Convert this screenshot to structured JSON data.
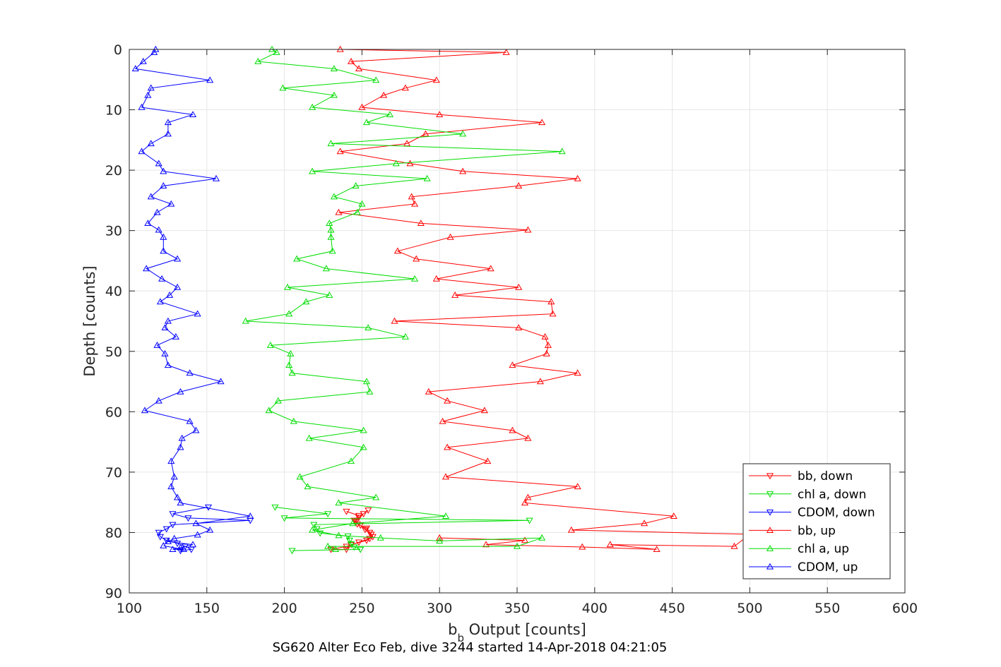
{
  "chart_data": {
    "type": "line",
    "title": "",
    "caption": "SG620 Alter Eco Feb, dive 3244 started 14-Apr-2018 04:21:05",
    "xlabel_main": "b",
    "xlabel_sub": "b",
    "xlabel_rest": " Output [counts]",
    "ylabel": "Depth [counts]",
    "xlim": [
      100,
      600
    ],
    "ylim": [
      0,
      90
    ],
    "y_reversed": true,
    "grid": true,
    "legend_position": "bottom-right",
    "xticks": [
      "100",
      "150",
      "200",
      "250",
      "300",
      "350",
      "400",
      "450",
      "500",
      "550",
      "600"
    ],
    "yticks": [
      "0",
      "10",
      "20",
      "30",
      "40",
      "50",
      "60",
      "70",
      "80",
      "90"
    ],
    "series": [
      {
        "name": "bb, down",
        "color": "#ff0000",
        "marker": "triangle-down",
        "points": [
          [
            240,
            76.5
          ],
          [
            248,
            77.2
          ],
          [
            245,
            78.0
          ],
          [
            247,
            78.6
          ],
          [
            253,
            79.3
          ],
          [
            255,
            80.0
          ],
          [
            257,
            80.7
          ],
          [
            253,
            81.3
          ],
          [
            243,
            82.0
          ],
          [
            240,
            82.8
          ],
          [
            230,
            82.8
          ],
          [
            240,
            82.3
          ],
          [
            248,
            81.6
          ],
          [
            255,
            81.0
          ],
          [
            256,
            80.3
          ],
          [
            252,
            79.5
          ],
          [
            249,
            78.8
          ],
          [
            246,
            78.2
          ],
          [
            248,
            77.5
          ],
          [
            251,
            76.9
          ],
          [
            254,
            76.3
          ]
        ]
      },
      {
        "name": "chl a, down",
        "color": "#00dd00",
        "marker": "triangle-down",
        "points": [
          [
            194,
            75.8
          ],
          [
            228,
            76.9
          ],
          [
            200,
            77.6
          ],
          [
            358,
            78.0
          ],
          [
            219,
            78.7
          ],
          [
            221,
            79.4
          ],
          [
            223,
            80.1
          ],
          [
            241,
            80.6
          ],
          [
            242,
            81.3
          ],
          [
            243,
            81.9
          ],
          [
            245,
            82.4
          ],
          [
            249,
            82.8
          ],
          [
            205,
            83.0
          ]
        ]
      },
      {
        "name": "CDOM, down",
        "color": "#0000ff",
        "marker": "triangle-down",
        "points": [
          [
            151,
            75.8
          ],
          [
            128,
            76.9
          ],
          [
            138,
            77.6
          ],
          [
            178,
            78.0
          ],
          [
            128,
            78.7
          ],
          [
            124,
            79.4
          ],
          [
            119,
            80.0
          ],
          [
            120,
            80.7
          ],
          [
            124,
            81.3
          ],
          [
            131,
            81.8
          ],
          [
            136,
            82.3
          ],
          [
            140,
            82.8
          ],
          [
            133,
            83.0
          ]
        ]
      },
      {
        "name": "bb, up",
        "color": "#ff0000",
        "marker": "triangle-up",
        "points": [
          [
            236,
            0
          ],
          [
            343,
            0.5
          ],
          [
            243,
            2.0
          ],
          [
            248,
            3.2
          ],
          [
            298,
            5.1
          ],
          [
            278,
            6.4
          ],
          [
            264,
            7.6
          ],
          [
            250,
            9.6
          ],
          [
            300,
            10.8
          ],
          [
            366,
            12.1
          ],
          [
            291,
            14.0
          ],
          [
            279,
            15.6
          ],
          [
            236,
            16.9
          ],
          [
            281,
            18.9
          ],
          [
            315,
            20.2
          ],
          [
            389,
            21.4
          ],
          [
            351,
            22.6
          ],
          [
            282,
            24.4
          ],
          [
            284,
            25.6
          ],
          [
            235,
            27.0
          ],
          [
            288,
            28.8
          ],
          [
            357,
            29.9
          ],
          [
            307,
            31.1
          ],
          [
            273,
            33.4
          ],
          [
            285,
            34.7
          ],
          [
            333,
            36.3
          ],
          [
            298,
            38.0
          ],
          [
            351,
            39.4
          ],
          [
            310,
            40.7
          ],
          [
            372,
            41.8
          ],
          [
            373,
            43.8
          ],
          [
            271,
            45.0
          ],
          [
            351,
            46.1
          ],
          [
            368,
            47.6
          ],
          [
            370,
            49.0
          ],
          [
            369,
            50.4
          ],
          [
            347,
            52.3
          ],
          [
            389,
            53.6
          ],
          [
            365,
            55.0
          ],
          [
            293,
            56.7
          ],
          [
            305,
            58.2
          ],
          [
            329,
            59.8
          ],
          [
            302,
            61.6
          ],
          [
            347,
            63.1
          ],
          [
            357,
            64.4
          ],
          [
            305,
            65.9
          ],
          [
            331,
            68.2
          ],
          [
            304,
            70.8
          ],
          [
            389,
            72.4
          ],
          [
            357,
            74.2
          ],
          [
            355,
            75.1
          ],
          [
            451,
            77.3
          ],
          [
            432,
            78.5
          ],
          [
            385,
            79.6
          ],
          [
            500,
            80.3
          ],
          [
            490,
            82.3
          ],
          [
            410,
            82.0
          ],
          [
            440,
            82.8
          ],
          [
            392,
            82.4
          ],
          [
            330,
            82.0
          ],
          [
            355,
            81.3
          ],
          [
            300,
            80.9
          ]
        ]
      },
      {
        "name": "chl a, up",
        "color": "#00dd00",
        "marker": "triangle-up",
        "points": [
          [
            192,
            0
          ],
          [
            195,
            0.5
          ],
          [
            183,
            2.0
          ],
          [
            232,
            3.2
          ],
          [
            259,
            5.1
          ],
          [
            199,
            6.4
          ],
          [
            232,
            7.6
          ],
          [
            218,
            9.6
          ],
          [
            268,
            10.8
          ],
          [
            253,
            12.1
          ],
          [
            315,
            14.0
          ],
          [
            230,
            15.6
          ],
          [
            379,
            16.9
          ],
          [
            272,
            18.9
          ],
          [
            218,
            20.2
          ],
          [
            292,
            21.4
          ],
          [
            246,
            22.6
          ],
          [
            232,
            24.4
          ],
          [
            250,
            25.6
          ],
          [
            247,
            27.0
          ],
          [
            229,
            28.8
          ],
          [
            230,
            29.9
          ],
          [
            230,
            31.1
          ],
          [
            231,
            33.4
          ],
          [
            208,
            34.7
          ],
          [
            227,
            36.3
          ],
          [
            284,
            38.0
          ],
          [
            202,
            39.4
          ],
          [
            229,
            40.7
          ],
          [
            214,
            41.8
          ],
          [
            203,
            43.8
          ],
          [
            175,
            45.0
          ],
          [
            254,
            46.1
          ],
          [
            278,
            47.6
          ],
          [
            191,
            49.0
          ],
          [
            204,
            50.4
          ],
          [
            203,
            52.3
          ],
          [
            205,
            53.6
          ],
          [
            253,
            55.0
          ],
          [
            255,
            56.7
          ],
          [
            196,
            58.2
          ],
          [
            190,
            59.8
          ],
          [
            206,
            61.6
          ],
          [
            251,
            63.1
          ],
          [
            216,
            64.4
          ],
          [
            251,
            65.9
          ],
          [
            243,
            68.2
          ],
          [
            210,
            70.8
          ],
          [
            215,
            72.4
          ],
          [
            259,
            74.2
          ],
          [
            235,
            75.1
          ],
          [
            304,
            77.3
          ],
          [
            244,
            78.5
          ],
          [
            218,
            79.6
          ],
          [
            235,
            80.5
          ],
          [
            262,
            80.9
          ],
          [
            300,
            81.4
          ],
          [
            366,
            80.9
          ],
          [
            350,
            82.3
          ],
          [
            228,
            82.3
          ],
          [
            233,
            82.8
          ]
        ]
      },
      {
        "name": "CDOM, up",
        "color": "#0000ff",
        "marker": "triangle-up",
        "points": [
          [
            117,
            0
          ],
          [
            116,
            0.5
          ],
          [
            109,
            2.0
          ],
          [
            104,
            3.2
          ],
          [
            152,
            5.1
          ],
          [
            114,
            6.4
          ],
          [
            112,
            7.6
          ],
          [
            108,
            9.6
          ],
          [
            141,
            10.8
          ],
          [
            125,
            12.1
          ],
          [
            125,
            14.0
          ],
          [
            114,
            15.6
          ],
          [
            108,
            16.9
          ],
          [
            119,
            18.9
          ],
          [
            122,
            20.2
          ],
          [
            156,
            21.4
          ],
          [
            122,
            22.6
          ],
          [
            114,
            24.4
          ],
          [
            127,
            25.6
          ],
          [
            118,
            27.0
          ],
          [
            112,
            28.8
          ],
          [
            119,
            29.9
          ],
          [
            122,
            31.1
          ],
          [
            122,
            33.4
          ],
          [
            131,
            34.7
          ],
          [
            111,
            36.3
          ],
          [
            121,
            38.0
          ],
          [
            131,
            39.4
          ],
          [
            126,
            40.7
          ],
          [
            120,
            41.8
          ],
          [
            144,
            43.8
          ],
          [
            125,
            45.0
          ],
          [
            123,
            46.1
          ],
          [
            130,
            47.6
          ],
          [
            118,
            49.0
          ],
          [
            123,
            50.4
          ],
          [
            125,
            52.3
          ],
          [
            139,
            53.6
          ],
          [
            159,
            55.0
          ],
          [
            133,
            56.7
          ],
          [
            119,
            58.2
          ],
          [
            110,
            59.8
          ],
          [
            139,
            61.6
          ],
          [
            143,
            63.1
          ],
          [
            134,
            64.4
          ],
          [
            133,
            65.9
          ],
          [
            127,
            68.2
          ],
          [
            129,
            70.8
          ],
          [
            127,
            72.4
          ],
          [
            131,
            74.2
          ],
          [
            133,
            75.1
          ],
          [
            178,
            77.3
          ],
          [
            143,
            78.5
          ],
          [
            152,
            79.6
          ],
          [
            144,
            80.4
          ],
          [
            129,
            81.0
          ],
          [
            125,
            81.5
          ],
          [
            141,
            82.0
          ],
          [
            133,
            82.5
          ],
          [
            128,
            82.8
          ],
          [
            135,
            82.8
          ],
          [
            122,
            82.2
          ]
        ]
      }
    ]
  }
}
